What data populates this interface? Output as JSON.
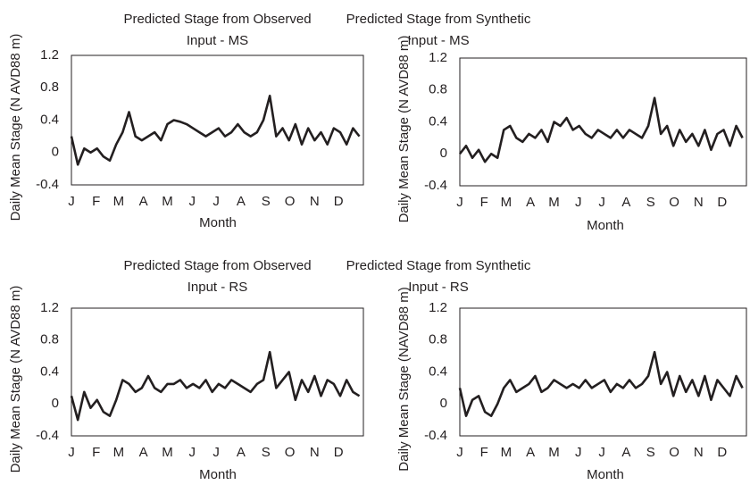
{
  "chart_data": [
    {
      "type": "line",
      "title": [
        "Predicted Stage from Observed",
        "Input - MS"
      ],
      "x_label": "Month",
      "y_label": "Daily Mean Stage (N AVD88 m)",
      "xlim": [
        0,
        365
      ],
      "xticks": [
        {
          "value": 0,
          "label": "J"
        },
        {
          "value": 31,
          "label": "F"
        },
        {
          "value": 59,
          "label": "M"
        },
        {
          "value": 90,
          "label": "A"
        },
        {
          "value": 120,
          "label": "M"
        },
        {
          "value": 151,
          "label": "J"
        },
        {
          "value": 181,
          "label": "J"
        },
        {
          "value": 212,
          "label": "A"
        },
        {
          "value": 243,
          "label": "S"
        },
        {
          "value": 273,
          "label": "O"
        },
        {
          "value": 304,
          "label": "N"
        },
        {
          "value": 334,
          "label": "D"
        }
      ],
      "ylim": [
        -0.4,
        1.2
      ],
      "yticks": [
        -0.4,
        0,
        0.4,
        0.8,
        1.2
      ],
      "x": [
        0,
        8,
        16,
        24,
        32,
        40,
        48,
        56,
        64,
        72,
        80,
        88,
        96,
        104,
        112,
        120,
        128,
        136,
        144,
        152,
        160,
        168,
        176,
        184,
        192,
        200,
        208,
        216,
        224,
        232,
        240,
        248,
        256,
        264,
        272,
        280,
        288,
        296,
        304,
        312,
        320,
        328,
        336,
        344,
        352,
        360
      ],
      "series": [
        {
          "color": "#231f20",
          "values": [
            0.2,
            -0.15,
            0.05,
            0.0,
            0.05,
            -0.05,
            -0.1,
            0.1,
            0.25,
            0.5,
            0.2,
            0.15,
            0.2,
            0.25,
            0.15,
            0.35,
            0.4,
            0.38,
            0.35,
            0.3,
            0.25,
            0.2,
            0.25,
            0.3,
            0.2,
            0.25,
            0.35,
            0.25,
            0.2,
            0.25,
            0.4,
            0.7,
            0.2,
            0.3,
            0.15,
            0.35,
            0.1,
            0.3,
            0.15,
            0.25,
            0.1,
            0.3,
            0.25,
            0.1,
            0.3,
            0.2
          ]
        }
      ]
    },
    {
      "type": "line",
      "title": [
        "Predicted Stage from Synthetic",
        "Input - MS"
      ],
      "x_label": "Month",
      "y_label": "Daily Mean Stage (N AVD88 m)",
      "xlim": [
        0,
        365
      ],
      "xticks": [
        {
          "value": 0,
          "label": "J"
        },
        {
          "value": 31,
          "label": "F"
        },
        {
          "value": 59,
          "label": "M"
        },
        {
          "value": 90,
          "label": "A"
        },
        {
          "value": 120,
          "label": "M"
        },
        {
          "value": 151,
          "label": "J"
        },
        {
          "value": 181,
          "label": "J"
        },
        {
          "value": 212,
          "label": "A"
        },
        {
          "value": 243,
          "label": "S"
        },
        {
          "value": 273,
          "label": "O"
        },
        {
          "value": 304,
          "label": "N"
        },
        {
          "value": 334,
          "label": "D"
        }
      ],
      "ylim": [
        -0.4,
        1.2
      ],
      "yticks": [
        -0.4,
        0,
        0.4,
        0.8,
        1.2
      ],
      "x": [
        0,
        8,
        16,
        24,
        32,
        40,
        48,
        56,
        64,
        72,
        80,
        88,
        96,
        104,
        112,
        120,
        128,
        136,
        144,
        152,
        160,
        168,
        176,
        184,
        192,
        200,
        208,
        216,
        224,
        232,
        240,
        248,
        256,
        264,
        272,
        280,
        288,
        296,
        304,
        312,
        320,
        328,
        336,
        344,
        352,
        360
      ],
      "series": [
        {
          "color": "#231f20",
          "values": [
            0.0,
            0.1,
            -0.05,
            0.05,
            -0.1,
            0.0,
            -0.05,
            0.3,
            0.35,
            0.2,
            0.15,
            0.25,
            0.2,
            0.3,
            0.15,
            0.4,
            0.35,
            0.45,
            0.3,
            0.35,
            0.25,
            0.2,
            0.3,
            0.25,
            0.2,
            0.3,
            0.2,
            0.3,
            0.25,
            0.2,
            0.35,
            0.7,
            0.25,
            0.35,
            0.1,
            0.3,
            0.15,
            0.25,
            0.1,
            0.3,
            0.05,
            0.25,
            0.3,
            0.1,
            0.35,
            0.2
          ]
        }
      ]
    },
    {
      "type": "line",
      "title": [
        "Predicted Stage from Observed",
        "Input - RS"
      ],
      "x_label": "Month",
      "y_label": "Daily Mean Stage (N AVD88 m)",
      "xlim": [
        0,
        365
      ],
      "xticks": [
        {
          "value": 0,
          "label": "J"
        },
        {
          "value": 31,
          "label": "F"
        },
        {
          "value": 59,
          "label": "M"
        },
        {
          "value": 90,
          "label": "A"
        },
        {
          "value": 120,
          "label": "M"
        },
        {
          "value": 151,
          "label": "J"
        },
        {
          "value": 181,
          "label": "J"
        },
        {
          "value": 212,
          "label": "A"
        },
        {
          "value": 243,
          "label": "S"
        },
        {
          "value": 273,
          "label": "O"
        },
        {
          "value": 304,
          "label": "N"
        },
        {
          "value": 334,
          "label": "D"
        }
      ],
      "ylim": [
        -0.4,
        1.2
      ],
      "yticks": [
        -0.4,
        0,
        0.4,
        0.8,
        1.2
      ],
      "x": [
        0,
        8,
        16,
        24,
        32,
        40,
        48,
        56,
        64,
        72,
        80,
        88,
        96,
        104,
        112,
        120,
        128,
        136,
        144,
        152,
        160,
        168,
        176,
        184,
        192,
        200,
        208,
        216,
        224,
        232,
        240,
        248,
        256,
        264,
        272,
        280,
        288,
        296,
        304,
        312,
        320,
        328,
        336,
        344,
        352,
        360
      ],
      "series": [
        {
          "color": "#231f20",
          "values": [
            0.1,
            -0.2,
            0.15,
            -0.05,
            0.05,
            -0.1,
            -0.15,
            0.05,
            0.3,
            0.25,
            0.15,
            0.2,
            0.35,
            0.2,
            0.15,
            0.25,
            0.25,
            0.3,
            0.2,
            0.25,
            0.2,
            0.3,
            0.15,
            0.25,
            0.2,
            0.3,
            0.25,
            0.2,
            0.15,
            0.25,
            0.3,
            0.65,
            0.2,
            0.3,
            0.4,
            0.05,
            0.3,
            0.15,
            0.35,
            0.1,
            0.3,
            0.25,
            0.1,
            0.3,
            0.15,
            0.1
          ]
        }
      ]
    },
    {
      "type": "line",
      "title": [
        "Predicted Stage from Synthetic",
        "Input - RS"
      ],
      "x_label": "Month",
      "y_label": "Daily Mean Stage (NAVD88 m)",
      "xlim": [
        0,
        365
      ],
      "xticks": [
        {
          "value": 0,
          "label": "J"
        },
        {
          "value": 31,
          "label": "F"
        },
        {
          "value": 59,
          "label": "M"
        },
        {
          "value": 90,
          "label": "A"
        },
        {
          "value": 120,
          "label": "M"
        },
        {
          "value": 151,
          "label": "J"
        },
        {
          "value": 181,
          "label": "J"
        },
        {
          "value": 212,
          "label": "A"
        },
        {
          "value": 243,
          "label": "S"
        },
        {
          "value": 273,
          "label": "O"
        },
        {
          "value": 304,
          "label": "N"
        },
        {
          "value": 334,
          "label": "D"
        }
      ],
      "ylim": [
        -0.4,
        1.2
      ],
      "yticks": [
        -0.4,
        0,
        0.4,
        0.8,
        1.2
      ],
      "x": [
        0,
        8,
        16,
        24,
        32,
        40,
        48,
        56,
        64,
        72,
        80,
        88,
        96,
        104,
        112,
        120,
        128,
        136,
        144,
        152,
        160,
        168,
        176,
        184,
        192,
        200,
        208,
        216,
        224,
        232,
        240,
        248,
        256,
        264,
        272,
        280,
        288,
        296,
        304,
        312,
        320,
        328,
        336,
        344,
        352,
        360
      ],
      "series": [
        {
          "color": "#231f20",
          "values": [
            0.2,
            -0.15,
            0.05,
            0.1,
            -0.1,
            -0.15,
            0.0,
            0.2,
            0.3,
            0.15,
            0.2,
            0.25,
            0.35,
            0.15,
            0.2,
            0.3,
            0.25,
            0.2,
            0.25,
            0.2,
            0.3,
            0.2,
            0.25,
            0.3,
            0.15,
            0.25,
            0.2,
            0.3,
            0.2,
            0.25,
            0.35,
            0.65,
            0.25,
            0.4,
            0.1,
            0.35,
            0.15,
            0.3,
            0.1,
            0.35,
            0.05,
            0.3,
            0.2,
            0.1,
            0.35,
            0.2
          ]
        }
      ]
    }
  ]
}
